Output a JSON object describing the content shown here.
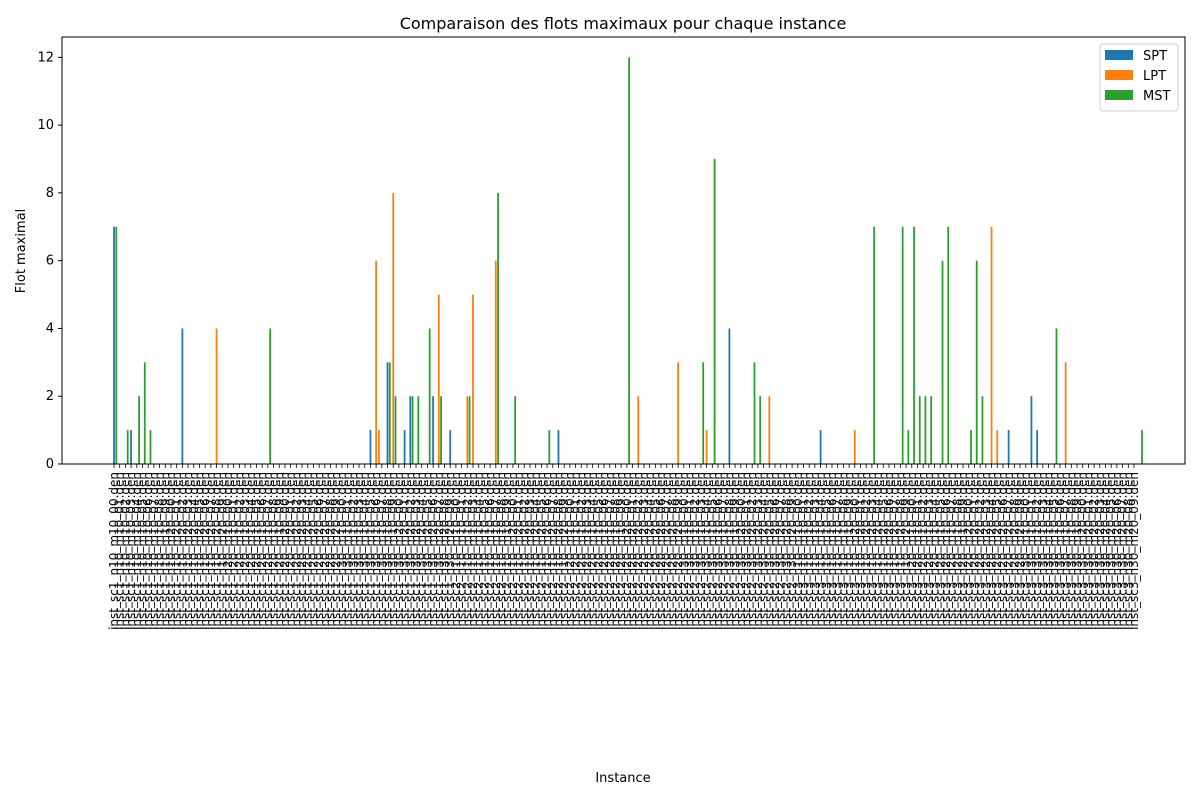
{
  "chart_data": {
    "type": "bar",
    "title": "Comparaison des flots maximaux pour chaque instance",
    "xlabel": "Instance",
    "ylabel": "Flot maximal",
    "ylim": [
      0,
      12.6
    ],
    "yticks": [
      0,
      2,
      4,
      6,
      8,
      10,
      12
    ],
    "grid": false,
    "legend_position": "top-right",
    "category_count": 180,
    "categories": [
      "inst_sc1_n10_m10_00.den",
      "inst_sc1_n10_m10_01.den",
      "inst_sc1_n10_m10_02.den",
      "inst_sc1_n10_m10_03.den",
      "inst_sc1_n10_m10_04.den",
      "inst_sc1_n10_m10_05.den",
      "inst_sc1_n10_m10_06.den",
      "inst_sc1_n10_m10_07.den",
      "inst_sc1_n10_m10_08.den",
      "inst_sc1_n10_m10_09.den",
      "inst_sc1_n10_m20_00.den",
      "inst_sc1_n10_m20_01.den",
      "inst_sc1_n10_m20_02.den",
      "inst_sc1_n10_m20_03.den",
      "inst_sc1_n10_m20_04.den",
      "inst_sc1_n10_m20_05.den",
      "inst_sc1_n10_m20_06.den",
      "inst_sc1_n10_m20_07.den",
      "inst_sc1_n10_m20_08.den",
      "inst_sc1_n10_m20_09.den",
      "inst_sc1_n20_m10_00.den",
      "inst_sc1_n20_m10_01.den",
      "inst_sc1_n20_m10_02.den",
      "inst_sc1_n20_m10_03.den",
      "inst_sc1_n20_m10_04.den",
      "inst_sc1_n20_m10_05.den",
      "inst_sc1_n20_m10_06.den",
      "inst_sc1_n20_m10_07.den",
      "inst_sc1_n20_m10_08.den",
      "inst_sc1_n20_m10_09.den",
      "inst_sc1_n20_m20_00.den",
      "inst_sc1_n20_m20_01.den",
      "inst_sc1_n20_m20_02.den",
      "inst_sc1_n20_m20_03.den",
      "inst_sc1_n20_m20_04.den",
      "inst_sc1_n20_m20_05.den",
      "inst_sc1_n20_m20_06.den",
      "inst_sc1_n20_m20_07.den",
      "inst_sc1_n20_m20_08.den",
      "inst_sc1_n20_m20_09.den",
      "inst_sc1_n30_m10_00.den",
      "inst_sc1_n30_m10_01.den",
      "inst_sc1_n30_m10_02.den",
      "inst_sc1_n30_m10_03.den",
      "inst_sc1_n30_m10_04.den",
      "inst_sc1_n30_m10_05.den",
      "inst_sc1_n30_m10_06.den",
      "inst_sc1_n30_m10_07.den",
      "inst_sc1_n30_m10_08.den",
      "inst_sc1_n30_m10_09.den",
      "inst_sc1_n30_m20_00.den",
      "inst_sc1_n30_m20_01.den",
      "inst_sc1_n30_m20_02.den",
      "inst_sc1_n30_m20_03.den",
      "inst_sc1_n30_m20_04.den",
      "inst_sc1_n30_m20_05.den",
      "inst_sc1_n30_m20_06.den",
      "inst_sc1_n30_m20_07.den",
      "inst_sc1_n30_m20_08.den",
      "inst_sc1_n30_m20_09.den",
      "inst_sc2_n10_m10_00.den",
      "inst_sc2_n10_m10_01.den",
      "inst_sc2_n10_m10_02.den",
      "inst_sc2_n10_m10_03.den",
      "inst_sc2_n10_m10_04.den",
      "inst_sc2_n10_m10_05.den",
      "inst_sc2_n10_m10_06.den",
      "inst_sc2_n10_m10_07.den",
      "inst_sc2_n10_m10_08.den",
      "inst_sc2_n10_m10_09.den",
      "inst_sc2_n10_m20_00.den",
      "inst_sc2_n10_m20_01.den",
      "inst_sc2_n10_m20_02.den",
      "inst_sc2_n10_m20_03.den",
      "inst_sc2_n10_m20_04.den",
      "inst_sc2_n10_m20_05.den",
      "inst_sc2_n10_m20_06.den",
      "inst_sc2_n10_m20_07.den",
      "inst_sc2_n10_m20_08.den",
      "inst_sc2_n10_m20_09.den",
      "inst_sc2_n20_m10_00.den",
      "inst_sc2_n20_m10_01.den",
      "inst_sc2_n20_m10_02.den",
      "inst_sc2_n20_m10_03.den",
      "inst_sc2_n20_m10_04.den",
      "inst_sc2_n20_m10_05.den",
      "inst_sc2_n20_m10_06.den",
      "inst_sc2_n20_m10_07.den",
      "inst_sc2_n20_m10_08.den",
      "inst_sc2_n20_m10_09.den",
      "inst_sc2_n20_m20_00.den",
      "inst_sc2_n20_m20_01.den",
      "inst_sc2_n20_m20_02.den",
      "inst_sc2_n20_m20_03.den",
      "inst_sc2_n20_m20_04.den",
      "inst_sc2_n20_m20_05.den",
      "inst_sc2_n20_m20_06.den",
      "inst_sc2_n20_m20_07.den",
      "inst_sc2_n20_m20_08.den",
      "inst_sc2_n20_m20_09.den",
      "inst_sc2_n30_m10_00.den",
      "inst_sc2_n30_m10_01.den",
      "inst_sc2_n30_m10_02.den",
      "inst_sc2_n30_m10_03.den",
      "inst_sc2_n30_m10_04.den",
      "inst_sc2_n30_m10_05.den",
      "inst_sc2_n30_m10_06.den",
      "inst_sc2_n30_m10_07.den",
      "inst_sc2_n30_m10_08.den",
      "inst_sc2_n30_m10_09.den",
      "inst_sc2_n30_m20_00.den",
      "inst_sc2_n30_m20_01.den",
      "inst_sc2_n30_m20_02.den",
      "inst_sc2_n30_m20_03.den",
      "inst_sc2_n30_m20_04.den",
      "inst_sc2_n30_m20_05.den",
      "inst_sc2_n30_m20_06.den",
      "inst_sc2_n30_m20_07.den",
      "inst_sc2_n30_m20_08.den",
      "inst_sc2_n30_m20_09.den",
      "inst_sc3_n10_m10_00.den",
      "inst_sc3_n10_m10_01.den",
      "inst_sc3_n10_m10_02.den",
      "inst_sc3_n10_m10_03.den",
      "inst_sc3_n10_m10_04.den",
      "inst_sc3_n10_m10_05.den",
      "inst_sc3_n10_m10_06.den",
      "inst_sc3_n10_m10_07.den",
      "inst_sc3_n10_m10_08.den",
      "inst_sc3_n10_m10_09.den",
      "inst_sc3_n10_m20_00.den",
      "inst_sc3_n10_m20_01.den",
      "inst_sc3_n10_m20_02.den",
      "inst_sc3_n10_m20_03.den",
      "inst_sc3_n10_m20_04.den",
      "inst_sc3_n10_m20_05.den",
      "inst_sc3_n10_m20_06.den",
      "inst_sc3_n10_m20_07.den",
      "inst_sc3_n10_m20_08.den",
      "inst_sc3_n10_m20_09.den",
      "inst_sc3_n20_m10_00.den",
      "inst_sc3_n20_m10_01.den",
      "inst_sc3_n20_m10_02.den",
      "inst_sc3_n20_m10_03.den",
      "inst_sc3_n20_m10_04.den",
      "inst_sc3_n20_m10_05.den",
      "inst_sc3_n20_m10_06.den",
      "inst_sc3_n20_m10_07.den",
      "inst_sc3_n20_m10_08.den",
      "inst_sc3_n20_m10_09.den",
      "inst_sc3_n20_m20_00.den",
      "inst_sc3_n20_m20_01.den",
      "inst_sc3_n20_m20_02.den",
      "inst_sc3_n20_m20_03.den",
      "inst_sc3_n20_m20_04.den",
      "inst_sc3_n20_m20_05.den",
      "inst_sc3_n20_m20_06.den",
      "inst_sc3_n20_m20_07.den",
      "inst_sc3_n20_m20_08.den",
      "inst_sc3_n20_m20_09.den",
      "inst_sc3_n30_m10_00.den",
      "inst_sc3_n30_m10_01.den",
      "inst_sc3_n30_m10_02.den",
      "inst_sc3_n30_m10_03.den",
      "inst_sc3_n30_m10_04.den",
      "inst_sc3_n30_m10_05.den",
      "inst_sc3_n30_m10_06.den",
      "inst_sc3_n30_m10_07.den",
      "inst_sc3_n30_m10_08.den",
      "inst_sc3_n30_m10_09.den",
      "inst_sc3_n30_m20_00.den",
      "inst_sc3_n30_m20_01.den",
      "inst_sc3_n30_m20_02.den",
      "inst_sc3_n30_m20_03.den",
      "inst_sc3_n30_m20_04.den",
      "inst_sc3_n30_m20_05.den",
      "inst_sc3_n30_m20_06.den",
      "inst_sc3_n30_m20_07.den",
      "inst_sc3_n30_m20_08.den",
      "inst_sc3_n30_m20_09.den"
    ],
    "series": [
      {
        "name": "SPT",
        "color": "#1f77b4",
        "points": [
          {
            "i": 0,
            "v": 7
          },
          {
            "i": 3,
            "v": 1
          },
          {
            "i": 12,
            "v": 4
          },
          {
            "i": 45,
            "v": 1
          },
          {
            "i": 48,
            "v": 3
          },
          {
            "i": 51,
            "v": 1
          },
          {
            "i": 52,
            "v": 2
          },
          {
            "i": 56,
            "v": 2
          },
          {
            "i": 59,
            "v": 1
          },
          {
            "i": 78,
            "v": 1
          },
          {
            "i": 108,
            "v": 4
          },
          {
            "i": 124,
            "v": 1
          },
          {
            "i": 157,
            "v": 1
          },
          {
            "i": 161,
            "v": 2
          },
          {
            "i": 162,
            "v": 1
          }
        ]
      },
      {
        "name": "LPT",
        "color": "#ff7f0e",
        "points": [
          {
            "i": 18,
            "v": 4
          },
          {
            "i": 46,
            "v": 6
          },
          {
            "i": 46.5,
            "v": 1
          },
          {
            "i": 49,
            "v": 8
          },
          {
            "i": 57,
            "v": 5
          },
          {
            "i": 62,
            "v": 2
          },
          {
            "i": 63,
            "v": 5
          },
          {
            "i": 67,
            "v": 6
          },
          {
            "i": 92,
            "v": 2
          },
          {
            "i": 99,
            "v": 3
          },
          {
            "i": 104,
            "v": 1
          },
          {
            "i": 115,
            "v": 2
          },
          {
            "i": 130,
            "v": 1
          },
          {
            "i": 154,
            "v": 7
          },
          {
            "i": 155,
            "v": 1
          },
          {
            "i": 167,
            "v": 3
          }
        ]
      },
      {
        "name": "MST",
        "color": "#2ca02c",
        "points": [
          {
            "i": 0.4,
            "v": 7
          },
          {
            "i": 2.4,
            "v": 1
          },
          {
            "i": 4.4,
            "v": 2
          },
          {
            "i": 5.4,
            "v": 3
          },
          {
            "i": 6.4,
            "v": 1
          },
          {
            "i": 27.4,
            "v": 4
          },
          {
            "i": 48.4,
            "v": 3
          },
          {
            "i": 49.4,
            "v": 2
          },
          {
            "i": 52.4,
            "v": 2
          },
          {
            "i": 53.4,
            "v": 2
          },
          {
            "i": 55.4,
            "v": 4
          },
          {
            "i": 57.4,
            "v": 2
          },
          {
            "i": 62.4,
            "v": 2
          },
          {
            "i": 67.4,
            "v": 8
          },
          {
            "i": 70.4,
            "v": 2
          },
          {
            "i": 76.4,
            "v": 1
          },
          {
            "i": 90.4,
            "v": 12
          },
          {
            "i": 103.4,
            "v": 3
          },
          {
            "i": 105.4,
            "v": 9
          },
          {
            "i": 112.4,
            "v": 3
          },
          {
            "i": 113.4,
            "v": 2
          },
          {
            "i": 133.4,
            "v": 7
          },
          {
            "i": 138.4,
            "v": 7
          },
          {
            "i": 139.4,
            "v": 1
          },
          {
            "i": 140.4,
            "v": 7
          },
          {
            "i": 141.4,
            "v": 2
          },
          {
            "i": 142.4,
            "v": 2
          },
          {
            "i": 143.4,
            "v": 2
          },
          {
            "i": 145.4,
            "v": 6
          },
          {
            "i": 146.4,
            "v": 7
          },
          {
            "i": 150.4,
            "v": 1
          },
          {
            "i": 151.4,
            "v": 6
          },
          {
            "i": 152.4,
            "v": 2
          },
          {
            "i": 165.4,
            "v": 4
          },
          {
            "i": 180.4,
            "v": 1
          }
        ]
      }
    ]
  }
}
